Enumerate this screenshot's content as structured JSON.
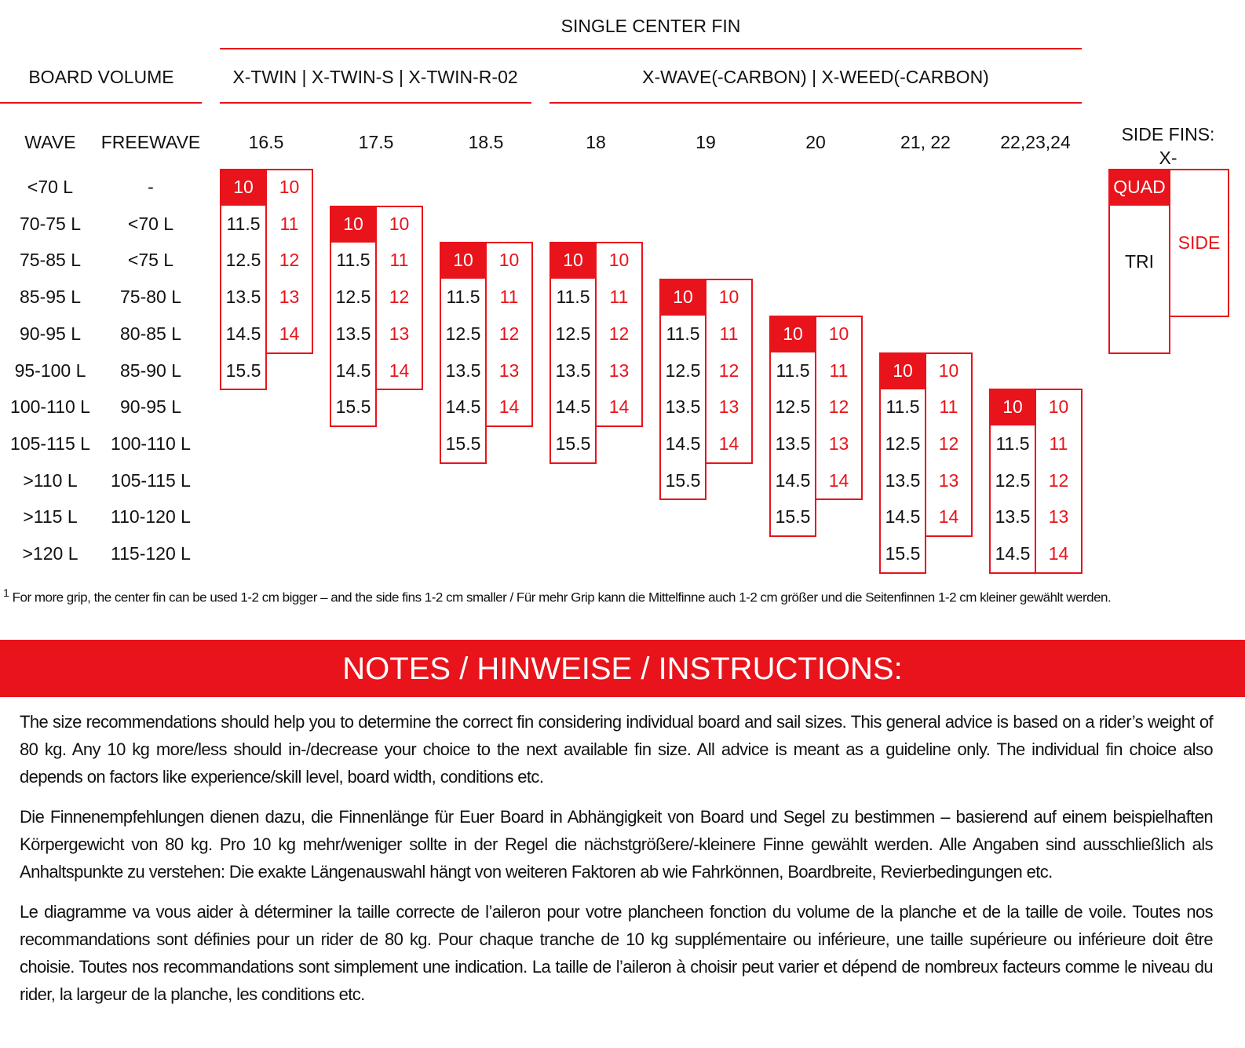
{
  "header": {
    "group_title": "SINGLE CENTER FIN",
    "board_volume": "BOARD VOLUME",
    "series": [
      "X-TWIN | X-TWIN-S | X-TWIN-R-02",
      "X-WAVE(-CARBON) | X-WEED(-CARBON)"
    ],
    "wave": "WAVE",
    "freewave": "FREEWAVE",
    "side_fins": [
      "SIDE FINS:",
      "X-"
    ]
  },
  "table": {
    "wave": [
      "<70 L",
      "70-75 L",
      "75-85 L",
      "85-95 L",
      "90-95 L",
      "95-100 L",
      "100-110 L",
      "105-115 L",
      ">110 L",
      ">115 L",
      ">120 L"
    ],
    "freewave": [
      "-",
      "<70 L",
      "<75 L",
      "75-80 L",
      "80-85 L",
      "85-90 L",
      "90-95 L",
      "100-110 L",
      "105-115 L",
      "110-120 L",
      "115-120 L"
    ],
    "columns": [
      {
        "size": "16.5",
        "center": [
          "10",
          "11.5",
          "12.5",
          "13.5",
          "14.5",
          "15.5",
          null,
          null,
          null,
          null,
          null
        ],
        "side": [
          "10",
          "11",
          "12",
          "13",
          "14",
          null,
          null,
          null,
          null,
          null,
          null
        ]
      },
      {
        "size": "17.5",
        "center": [
          null,
          "10",
          "11.5",
          "12.5",
          "13.5",
          "14.5",
          "15.5",
          null,
          null,
          null,
          null
        ],
        "side": [
          null,
          "10",
          "11",
          "12",
          "13",
          "14",
          null,
          null,
          null,
          null,
          null
        ]
      },
      {
        "size": "18.5",
        "center": [
          null,
          null,
          "10",
          "11.5",
          "12.5",
          "13.5",
          "14.5",
          "15.5",
          null,
          null,
          null
        ],
        "side": [
          null,
          null,
          "10",
          "11",
          "12",
          "13",
          "14",
          null,
          null,
          null,
          null
        ]
      },
      {
        "size": "18",
        "center": [
          null,
          null,
          "10",
          "11.5",
          "12.5",
          "13.5",
          "14.5",
          "15.5",
          null,
          null,
          null
        ],
        "side": [
          null,
          null,
          "10",
          "11",
          "12",
          "13",
          "14",
          null,
          null,
          null,
          null
        ]
      },
      {
        "size": "19",
        "center": [
          null,
          null,
          null,
          "10",
          "11.5",
          "12.5",
          "13.5",
          "14.5",
          "15.5",
          null,
          null
        ],
        "side": [
          null,
          null,
          null,
          "10",
          "11",
          "12",
          "13",
          "14",
          null,
          null,
          null
        ]
      },
      {
        "size": "20",
        "center": [
          null,
          null,
          null,
          null,
          "10",
          "11.5",
          "12.5",
          "13.5",
          "14.5",
          "15.5",
          null
        ],
        "side": [
          null,
          null,
          null,
          null,
          "10",
          "11",
          "12",
          "13",
          "14",
          null,
          null
        ]
      },
      {
        "size": "21, 22",
        "center": [
          null,
          null,
          null,
          null,
          null,
          "10",
          "11.5",
          "12.5",
          "13.5",
          "14.5",
          "15.5"
        ],
        "side": [
          null,
          null,
          null,
          null,
          null,
          "10",
          "11",
          "12",
          "13",
          "14",
          null
        ]
      },
      {
        "size": "22,23,24",
        "center": [
          null,
          null,
          null,
          null,
          null,
          null,
          "10",
          "11.5",
          "12.5",
          "13.5",
          "14.5"
        ],
        "side": [
          null,
          null,
          null,
          null,
          null,
          null,
          "10",
          "11",
          "12",
          "13",
          "14"
        ]
      }
    ],
    "side_fin_types": {
      "quad": "QUAD",
      "tri": "TRI",
      "side": "SIDE"
    }
  },
  "footnote": {
    "marker": "1",
    "text": "For more grip, the center fin can be used 1-2 cm bigger – and the side fins 1-2 cm smaller / Für mehr Grip kann die Mittelfinne auch 1-2 cm größer und die Seitenfinnen 1-2 cm kleiner gewählt werden."
  },
  "notes": {
    "title": "NOTES / HINWEISE / INSTRUCTIONS:",
    "paragraphs": [
      "The size recommendations should help you to determine the correct fin considering individual board and sail sizes. This general advice is based on a rider’s weight of 80 kg. Any 10 kg more/less should in-/decrease your choice to the next available fin size. All advice is meant as a guideline only. The individual fin choice also depends on factors like experience/skill level, board width, conditions etc.",
      "Die Finnenempfehlungen dienen dazu, die Finnenlänge für Euer Board in Abhängigkeit von Board und Segel zu bestimmen – basierend auf einem beispielhaften Körpergewicht von 80 kg. Pro 10 kg mehr/weniger sollte in der Regel die nächstgrößere/-kleinere Finne gewählt werden. Alle Angaben sind ausschließlich als Anhaltspunkte zu verstehen: Die exakte Längenauswahl hängt von weiteren Faktoren ab wie Fahrkönnen, Boardbreite, Revierbedingungen etc.",
      "Le diagramme va vous aider à déterminer la taille correcte de l’aileron pour votre plancheen fonction du volume de la planche et de la taille de voile. Toutes nos recommandations sont définies pour un rider de 80 kg. Pour chaque tranche de 10 kg supplémentaire ou inférieure, une taille supérieure ou inférieure doit être choisie. Toutes nos recommandations sont simplement une indication. La taille de l’aileron à choisir peut varier et dépend de nombreux facteurs comme le niveau du rider, la largeur de la planche, les conditions etc."
    ]
  }
}
